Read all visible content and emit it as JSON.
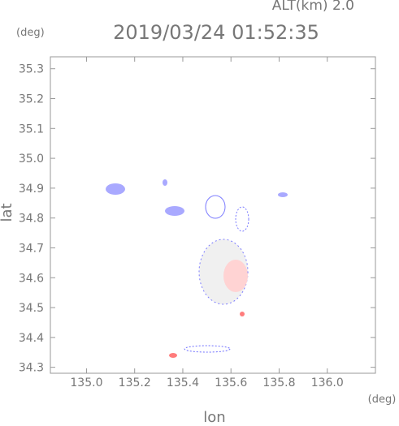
{
  "chart_data": {
    "type": "map",
    "title": "2019/03/24 01:52:35",
    "altitude_label": "ALT(km) 2.0",
    "y_unit": "(deg)",
    "x_unit": "(deg)",
    "x_label": "lon",
    "y_label": "lat",
    "xlim": [
      134.85,
      136.2
    ],
    "xticks": [
      {
        "value": 135.0,
        "label": "135.0"
      },
      135.2,
      135.4,
      135.6,
      135.8,
      {
        "value": 136.0,
        "label": "136.0"
      }
    ],
    "ylim": [
      34.28,
      35.34
    ],
    "yticks": [
      35.3,
      35.2,
      35.1,
      {
        "value": 35.0,
        "label": "35.0"
      },
      34.9,
      34.8,
      34.7,
      34.6,
      34.5,
      34.4,
      34.3
    ]
  }
}
